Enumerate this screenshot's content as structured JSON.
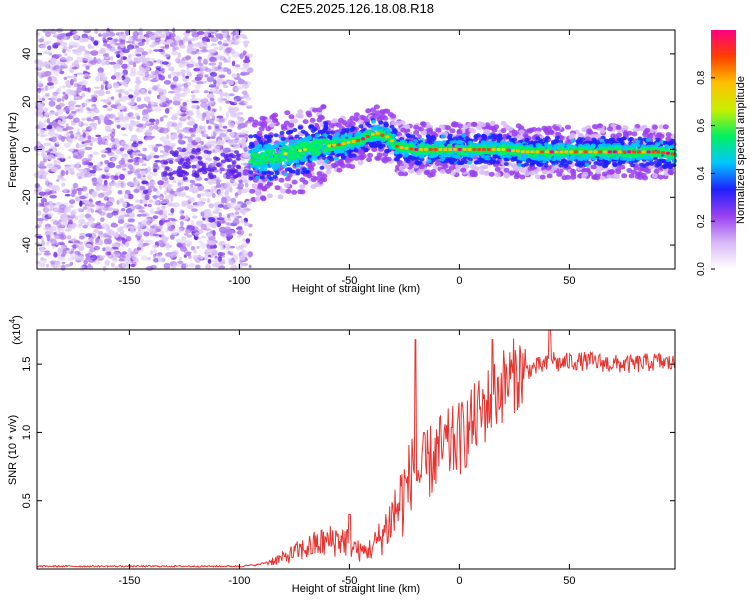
{
  "title": "C2E5.2025.126.18.08.R18",
  "chart_data": [
    {
      "type": "heatmap",
      "xlabel": "Height of straight line (km)",
      "ylabel": "Frequency (Hz)",
      "xlim": [
        -192,
        98
      ],
      "ylim": [
        -50,
        50
      ],
      "xticks": [
        -150,
        -100,
        -50,
        0,
        50
      ],
      "yticks": [
        -40,
        -20,
        0,
        20,
        40
      ],
      "xtick_labels": [
        "-150",
        "-100",
        "-50",
        "0",
        "50"
      ],
      "ytick_labels": [
        "-40",
        "-20",
        "0",
        "20",
        "40"
      ],
      "noise_region_x": [
        -192,
        -95
      ],
      "signal_track": {
        "x": [
          -95,
          -85,
          -75,
          -65,
          -55,
          -45,
          -38,
          -32,
          -28,
          -20,
          -10,
          0,
          10,
          20,
          30,
          40,
          50,
          60,
          70,
          80,
          90,
          98
        ],
        "freq": [
          -4,
          -3,
          -1,
          1,
          2,
          4,
          7,
          5,
          1,
          0,
          0,
          0,
          0,
          0,
          -1,
          -1,
          -1,
          -1,
          -1,
          -1,
          -1,
          -2
        ]
      },
      "colorbar": {
        "label": "Normalized spectral amplitude",
        "range": [
          0,
          1
        ],
        "ticks": [
          0.0,
          0.2,
          0.4,
          0.6,
          0.8
        ],
        "tick_labels": [
          "0.0",
          "0.2",
          "0.4",
          "0.6",
          "0.8"
        ],
        "colors": [
          "#ffffff",
          "#d8b8f8",
          "#9a40f0",
          "#2020ff",
          "#00c8ff",
          "#00f060",
          "#c8f000",
          "#ffc000",
          "#ff4000",
          "#ff0080"
        ]
      }
    },
    {
      "type": "line",
      "xlabel": "Height of straight line (km)",
      "ylabel": "SNR (10 * v/v)",
      "multiplier_label": "(x10",
      "multiplier_exp": "4",
      "xlim": [
        -192,
        98
      ],
      "ylim": [
        0,
        1.75
      ],
      "xticks": [
        -150,
        -100,
        -50,
        0,
        50
      ],
      "yticks": [
        0.5,
        1.0,
        1.5
      ],
      "xtick_labels": [
        "-150",
        "-100",
        "-50",
        "0",
        "50"
      ],
      "ytick_labels": [
        "0.5",
        "1.0",
        "1.5"
      ],
      "series": [
        {
          "name": "SNR",
          "color": "#e8332f",
          "x": [
            -192,
            -150,
            -100,
            -92,
            -85,
            -80,
            -75,
            -70,
            -65,
            -60,
            -55,
            -50,
            -45,
            -40,
            -35,
            -30,
            -25,
            -22,
            -20,
            -18,
            -15,
            -10,
            -5,
            0,
            5,
            10,
            15,
            20,
            25,
            30,
            35,
            40,
            42,
            45,
            50,
            60,
            70,
            80,
            90,
            98
          ],
          "values": [
            0.02,
            0.02,
            0.02,
            0.03,
            0.06,
            0.08,
            0.12,
            0.15,
            0.18,
            0.2,
            0.22,
            0.2,
            0.12,
            0.15,
            0.25,
            0.4,
            0.55,
            0.7,
            0.75,
            0.68,
            0.75,
            0.85,
            0.9,
            0.95,
            1.05,
            1.15,
            1.25,
            1.35,
            1.42,
            1.45,
            1.48,
            1.5,
            1.55,
            1.5,
            1.52,
            1.52,
            1.5,
            1.5,
            1.52,
            1.5
          ],
          "spikes": [
            {
              "x": -20,
              "value": 1.68
            },
            {
              "x": -50,
              "value": 0.4
            },
            {
              "x": 15,
              "value": 1.68
            },
            {
              "x": 41,
              "value": 1.75
            }
          ]
        }
      ]
    }
  ]
}
